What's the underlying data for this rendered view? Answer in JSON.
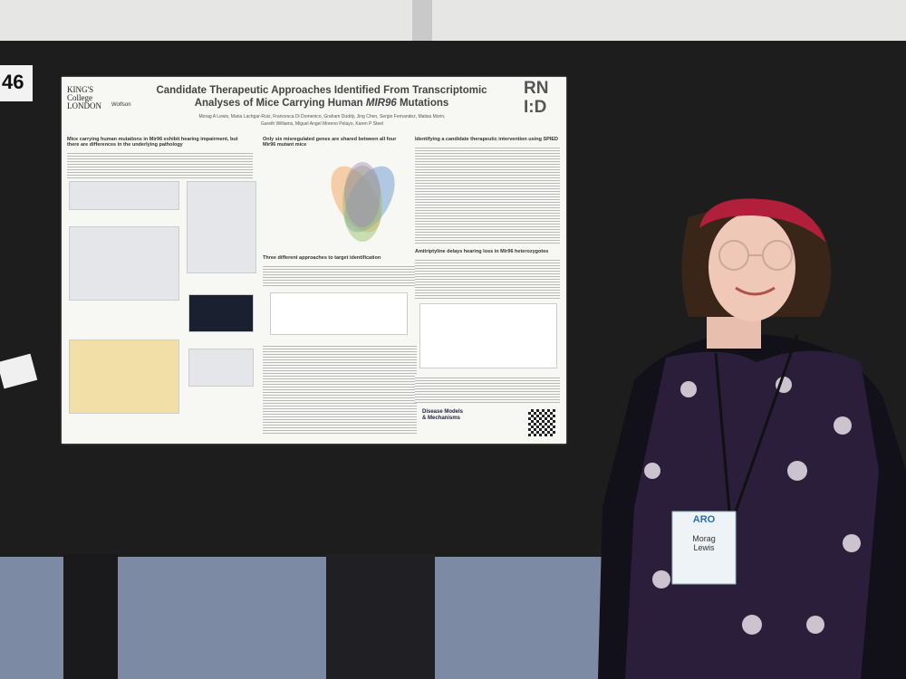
{
  "board_number": "46",
  "poster": {
    "kings_logo": [
      "KING'S",
      "College",
      "LONDON"
    ],
    "wolfson_logo": "Wolfson",
    "rnid_logo": [
      "RN",
      "I:D"
    ],
    "title": [
      "Candidate Therapeutic Approaches Identified From Transcriptomic",
      "Analyses of Mice Carrying Human ",
      "MIR96",
      " Mutations"
    ],
    "authors": [
      "Morag A Lewis, Maria Lachgar-Ruiz, Francesca Di Domenico, Graham Duddy, Jing Chen, Sergio Fernandez, Matias Morin,",
      "Gareth Williams, Miguel Angel Moreno Pelayo, Karen P Steel"
    ],
    "sections": [
      "Mice carrying human mutations in Mir96 exhibit hearing impairment, but there are differences in the underlying pathology",
      "Only six misregulated genes are shared between all four Mir96 mutant mice",
      "Three different approaches to target identification",
      "Identifying a candidate therapeutic intervention using SPIED",
      "Amitriptyline delays hearing loss in Mir96 heterozygotes"
    ],
    "journal": [
      "Disease Models",
      "& Mechanisms"
    ]
  },
  "badge": {
    "event": "ARO",
    "name": [
      "Morag",
      "Lewis"
    ]
  }
}
